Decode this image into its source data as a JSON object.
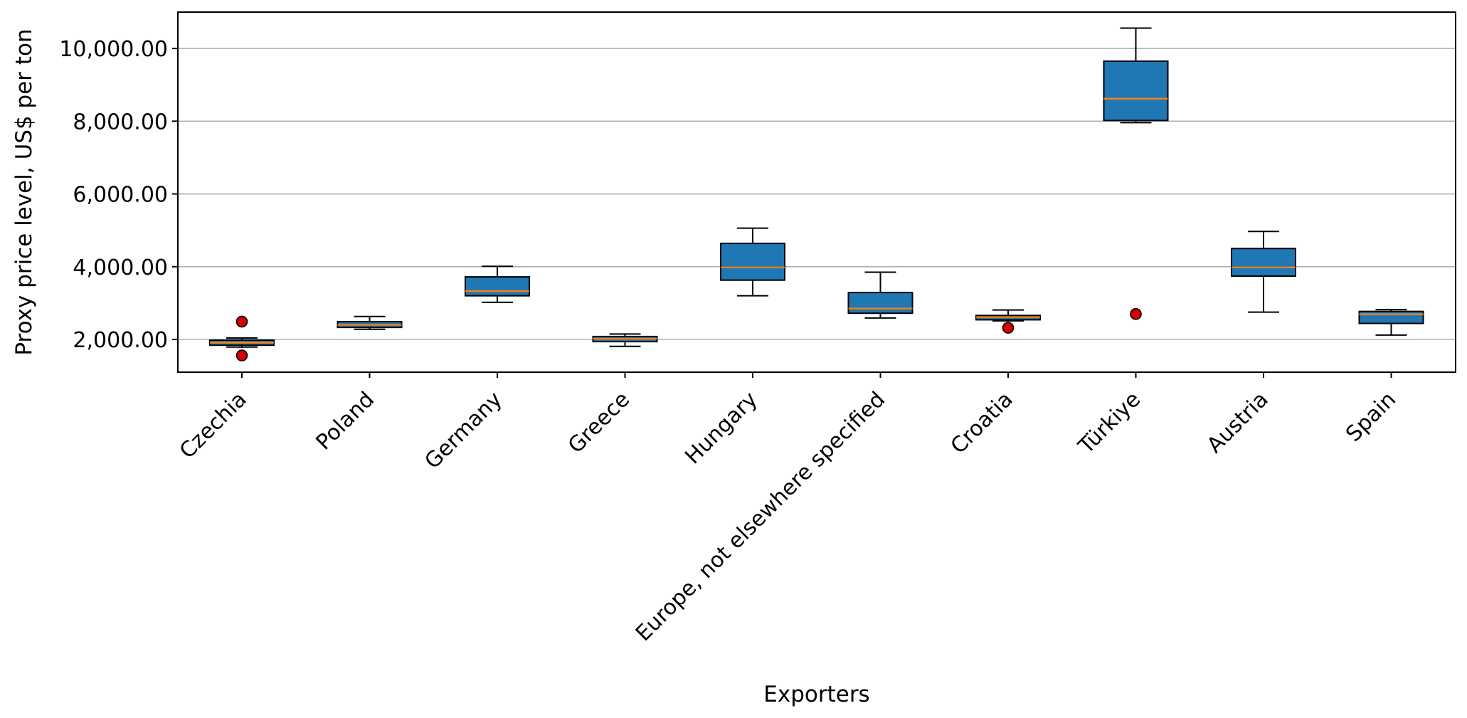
{
  "chart_data": {
    "type": "box",
    "title": "",
    "xlabel": "Exporters",
    "ylabel": "Proxy price level, US$ per ton",
    "ylim": [
      1100,
      11000
    ],
    "yticks": [
      2000,
      4000,
      6000,
      8000,
      10000
    ],
    "ytick_labels": [
      "2,000.00",
      "4,000.00",
      "6,000.00",
      "8,000.00",
      "10,000.00"
    ],
    "grid": "y",
    "colors": {
      "box": "#1f77b4",
      "median": "#ff7f0e",
      "outlier": "#d40000"
    },
    "boxes": [
      {
        "category": "Czechia",
        "whisker_low": 1790,
        "q1": 1840,
        "median": 1910,
        "q3": 1980,
        "whisker_high": 2040,
        "outliers": [
          2490,
          1560
        ]
      },
      {
        "category": "Poland",
        "whisker_low": 2280,
        "q1": 2330,
        "median": 2400,
        "q3": 2490,
        "whisker_high": 2630,
        "outliers": []
      },
      {
        "category": "Germany",
        "whisker_low": 3020,
        "q1": 3200,
        "median": 3330,
        "q3": 3720,
        "whisker_high": 4010,
        "outliers": []
      },
      {
        "category": "Greece",
        "whisker_low": 1810,
        "q1": 1940,
        "median": 2020,
        "q3": 2080,
        "whisker_high": 2150,
        "outliers": []
      },
      {
        "category": "Hungary",
        "whisker_low": 3200,
        "q1": 3630,
        "median": 3980,
        "q3": 4640,
        "whisker_high": 5060,
        "outliers": []
      },
      {
        "category": "Europe, not elsewhere specified",
        "whisker_low": 2590,
        "q1": 2720,
        "median": 2850,
        "q3": 3290,
        "whisker_high": 3850,
        "outliers": []
      },
      {
        "category": "Croatia",
        "whisker_low": 2510,
        "q1": 2540,
        "median": 2610,
        "q3": 2660,
        "whisker_high": 2810,
        "outliers": [
          2320
        ]
      },
      {
        "category": "Türkiye",
        "whisker_low": 7960,
        "q1": 8020,
        "median": 8620,
        "q3": 9650,
        "whisker_high": 10560,
        "outliers": [
          2700
        ]
      },
      {
        "category": "Austria",
        "whisker_low": 2750,
        "q1": 3740,
        "median": 3980,
        "q3": 4500,
        "whisker_high": 4970,
        "outliers": []
      },
      {
        "category": "Spain",
        "whisker_low": 2120,
        "q1": 2440,
        "median": 2690,
        "q3": 2770,
        "whisker_high": 2820,
        "outliers": []
      }
    ]
  }
}
